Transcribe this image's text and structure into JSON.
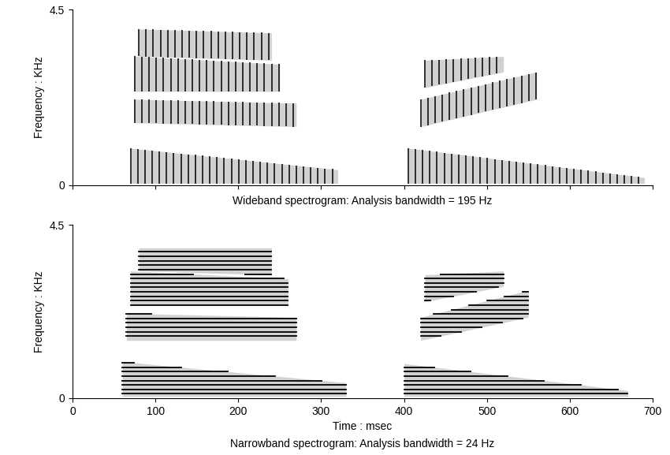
{
  "chart_data": [
    {
      "type": "spectrogram",
      "title": "Wideband spectrogram: Analysis bandwidth = 195 Hz",
      "ylabel": "Frequency : KHz",
      "analysis_bandwidth": 0.195,
      "f0": 0.115,
      "xlim": [
        0,
        700
      ],
      "ylim": [
        0,
        4.5
      ],
      "xticks": [
        0,
        100,
        200,
        300,
        400,
        500,
        600,
        700
      ],
      "yticks": [
        0,
        4.5
      ],
      "tick_labels": "y",
      "color": "#000000",
      "bands": [
        {
          "start": 70,
          "end": 320,
          "low": [
            0.05,
            0.05
          ],
          "high": [
            0.95,
            0.4
          ]
        },
        {
          "start": 75,
          "end": 270,
          "low": [
            1.6,
            1.5
          ],
          "high": [
            2.2,
            2.1
          ]
        },
        {
          "start": 75,
          "end": 250,
          "low": [
            2.4,
            2.4
          ],
          "high": [
            3.3,
            3.1
          ]
        },
        {
          "start": 80,
          "end": 240,
          "low": [
            3.3,
            3.2
          ],
          "high": [
            4.0,
            3.9
          ]
        },
        {
          "start": 405,
          "end": 690,
          "low": [
            0.05,
            0.05
          ],
          "high": [
            0.95,
            0.2
          ]
        },
        {
          "start": 420,
          "end": 560,
          "low": [
            1.5,
            2.2
          ],
          "high": [
            2.2,
            2.9
          ]
        },
        {
          "start": 425,
          "end": 520,
          "low": [
            2.5,
            2.9
          ],
          "high": [
            3.2,
            3.3
          ]
        }
      ]
    },
    {
      "type": "spectrogram",
      "title": "Narrowband spectrogram: Analysis bandwidth = 24 Hz",
      "xlabel": "Time : msec",
      "ylabel": "Frequency : KHz",
      "analysis_bandwidth": 0.024,
      "f0": 0.115,
      "xlim": [
        0,
        700
      ],
      "ylim": [
        0,
        4.5
      ],
      "xticks": [
        0,
        100,
        200,
        300,
        400,
        500,
        600,
        700
      ],
      "yticks": [
        0,
        4.5
      ],
      "color": "#000000",
      "bands": [
        {
          "start": 60,
          "end": 330,
          "low": [
            0.05,
            0.05
          ],
          "high": [
            0.95,
            0.4
          ]
        },
        {
          "start": 65,
          "end": 270,
          "low": [
            1.5,
            1.5
          ],
          "high": [
            2.2,
            2.1
          ]
        },
        {
          "start": 70,
          "end": 260,
          "low": [
            2.4,
            2.4
          ],
          "high": [
            3.3,
            3.1
          ]
        },
        {
          "start": 80,
          "end": 240,
          "low": [
            3.3,
            3.2
          ],
          "high": [
            3.9,
            3.9
          ]
        },
        {
          "start": 400,
          "end": 670,
          "low": [
            0.05,
            0.05
          ],
          "high": [
            0.9,
            0.2
          ]
        },
        {
          "start": 420,
          "end": 550,
          "low": [
            1.5,
            2.1
          ],
          "high": [
            2.1,
            2.8
          ]
        },
        {
          "start": 425,
          "end": 520,
          "low": [
            2.5,
            2.9
          ],
          "high": [
            3.2,
            3.3
          ]
        }
      ]
    }
  ]
}
